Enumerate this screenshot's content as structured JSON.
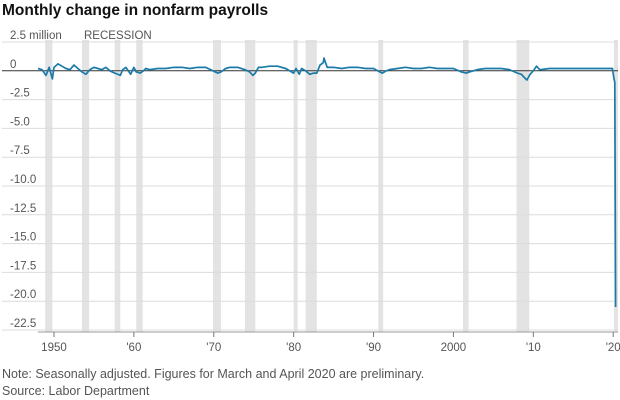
{
  "title": "Monthly change in nonfarm payrolls",
  "note": "Note: Seasonally adjusted. Figures for March and April 2020 are preliminary.",
  "source": "Source: Labor Department",
  "colors": {
    "line": "#1a7ba8",
    "recession": "#e3e3e3",
    "grid": "#dcdcdc",
    "zero": "#333333"
  },
  "chart_data": {
    "type": "line",
    "title": "Monthly change in nonfarm payrolls",
    "unit": "million",
    "first_y_tick_label": "2.5 million",
    "recession_label": "RECESSION",
    "ylim": [
      -22.5,
      2.5
    ],
    "xlim": [
      1948,
      2020.6
    ],
    "y_ticks": [
      2.5,
      0,
      -2.5,
      -5.0,
      -7.5,
      -10.0,
      -12.5,
      -15.0,
      -17.5,
      -20.0,
      -22.5
    ],
    "y_tick_labels": [
      "2.5 million",
      "0",
      "-2.5",
      "-5.0",
      "-7.5",
      "-10.0",
      "-12.5",
      "-15.0",
      "-17.5",
      "-20.0",
      "-22.5"
    ],
    "x_ticks": [
      1950,
      1960,
      1970,
      1980,
      1990,
      2000,
      2010,
      2020
    ],
    "x_tick_labels": [
      "1950",
      "'60",
      "'70",
      "'80",
      "'90",
      "2000",
      "'10",
      "'20"
    ],
    "grid": "horizontal",
    "recessions": [
      [
        1948.9,
        1949.8
      ],
      [
        1953.5,
        1954.4
      ],
      [
        1957.6,
        1958.3
      ],
      [
        1960.3,
        1961.1
      ],
      [
        1969.9,
        1970.9
      ],
      [
        1973.9,
        1975.2
      ],
      [
        1980.0,
        1980.5
      ],
      [
        1981.5,
        1982.9
      ],
      [
        1990.6,
        1991.2
      ],
      [
        2001.2,
        2001.9
      ],
      [
        2007.9,
        2009.5
      ],
      [
        2020.1,
        2020.6
      ]
    ],
    "series": [
      {
        "x": [
          1948.0,
          1948.5,
          1949.0,
          1949.4,
          1949.8,
          1950.0,
          1950.5,
          1951.0,
          1951.5,
          1952.0,
          1952.5,
          1953.0,
          1953.5,
          1954.0,
          1954.5,
          1955.0,
          1955.5,
          1956.0,
          1956.5,
          1957.0,
          1957.6,
          1958.0,
          1958.3,
          1958.6,
          1959.0,
          1959.6,
          1960.0,
          1960.3,
          1960.8,
          1961.2,
          1961.5,
          1962.0,
          1963.0,
          1964.0,
          1965.0,
          1966.0,
          1967.0,
          1968.0,
          1969.0,
          1969.9,
          1970.5,
          1970.9,
          1971.5,
          1972.0,
          1973.0,
          1973.9,
          1974.5,
          1974.9,
          1975.2,
          1975.6,
          1976.0,
          1977.0,
          1978.0,
          1979.0,
          1980.0,
          1980.3,
          1980.7,
          1981.0,
          1981.5,
          1982.0,
          1982.5,
          1982.9,
          1983.3,
          1983.7,
          1983.8,
          1984.2,
          1985.0,
          1986.0,
          1987.0,
          1988.0,
          1989.0,
          1990.0,
          1990.8,
          1991.1,
          1991.6,
          1992.0,
          1993.0,
          1994.0,
          1995.0,
          1996.0,
          1997.0,
          1998.0,
          1999.0,
          2000.0,
          2001.0,
          2001.6,
          2002.0,
          2002.5,
          2003.0,
          2004.0,
          2005.0,
          2006.0,
          2007.0,
          2008.0,
          2008.5,
          2008.9,
          2009.2,
          2009.6,
          2010.0,
          2010.4,
          2010.8,
          2011.0,
          2012.0,
          2013.0,
          2014.0,
          2015.0,
          2016.0,
          2017.0,
          2018.0,
          2019.0,
          2019.9,
          2020.1,
          2020.2,
          2020.3
        ],
        "values": [
          0.2,
          0.1,
          -0.4,
          0.3,
          -0.7,
          0.3,
          0.6,
          0.4,
          0.2,
          0.1,
          0.5,
          0.2,
          -0.1,
          -0.3,
          0.1,
          0.3,
          0.2,
          0.1,
          0.3,
          0.0,
          -0.2,
          -0.3,
          -0.4,
          0.1,
          0.3,
          -0.3,
          0.3,
          -0.1,
          -0.2,
          0.0,
          0.2,
          0.1,
          0.2,
          0.2,
          0.3,
          0.3,
          0.2,
          0.3,
          0.3,
          0.0,
          -0.2,
          -0.1,
          0.2,
          0.3,
          0.3,
          0.1,
          -0.1,
          -0.4,
          -0.2,
          0.3,
          0.3,
          0.4,
          0.4,
          0.2,
          -0.2,
          0.2,
          -0.3,
          0.2,
          0.0,
          -0.3,
          -0.2,
          -0.2,
          0.5,
          0.7,
          1.1,
          0.3,
          0.3,
          0.2,
          0.3,
          0.3,
          0.2,
          0.2,
          -0.1,
          -0.2,
          0.0,
          0.1,
          0.2,
          0.3,
          0.2,
          0.2,
          0.3,
          0.2,
          0.2,
          0.2,
          -0.1,
          -0.2,
          -0.1,
          0.0,
          0.1,
          0.2,
          0.2,
          0.2,
          0.1,
          -0.2,
          -0.3,
          -0.6,
          -0.8,
          -0.3,
          0.0,
          0.4,
          0.1,
          0.1,
          0.2,
          0.2,
          0.2,
          0.2,
          0.2,
          0.2,
          0.2,
          0.2,
          0.2,
          -0.7,
          -1.0,
          -20.5
        ]
      }
    ]
  }
}
